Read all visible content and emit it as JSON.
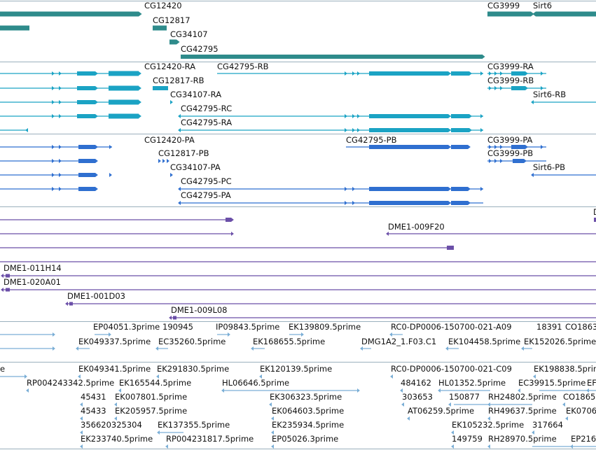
{
  "genes": {
    "labels": [
      "CG12420",
      "CG12817",
      "CG34107",
      "CG42795",
      "CG3999",
      "Sirt6"
    ],
    "color": "#2e8b8b"
  },
  "transcripts": {
    "labels": [
      "CG12420-RA",
      "CG42795-RB",
      "CG3999-RA",
      "CG12817-RB",
      "CG3999-RB",
      "CG34107-RA",
      "Sirt6-RB",
      "CG42795-RC",
      "CG42795-RA"
    ],
    "color": "#1ba3c4"
  },
  "proteins": {
    "labels": [
      "CG12420-PA",
      "CG42795-PB",
      "CG3999-PA",
      "CG12817-PB",
      "CG3999-PB",
      "CG34107-PA",
      "Sirt6-PB",
      "CG42795-PC",
      "CG42795-PA"
    ],
    "color": "#2f6fd0"
  },
  "clones": {
    "labels": [
      "DME1-009F20",
      "DME1-011H14",
      "DME1-020A01",
      "DME1-001D03",
      "DME1-009L08"
    ],
    "color": "#6b4fa8"
  },
  "ests_a": {
    "labels": [
      "EP04051.3prime",
      "190945",
      "IP09843.5prime",
      "EK139809.5prime",
      "RC0-DP0006-150700-021-A09",
      "18391",
      "CO1863",
      "EK049337.5prime",
      "EC35260.5prime",
      "EK168655.5prime",
      "DMG1A2_1.F03.C1",
      "EK104458.5prime",
      "EK152026.5prime"
    ],
    "color": "#7aaed6"
  },
  "ests_b": {
    "labels": [
      "e",
      "EK049341.5prime",
      "EK291830.5prime",
      "EK120139.5prime",
      "RC0-DP0006-150700-021-C09",
      "EK198838.5prime",
      "RP004243342.5prime",
      "EK165544.5prime",
      "HL06646.5prime",
      "484162",
      "HL01352.5prime",
      "EC39915.5prime",
      "EF",
      "45431",
      "EK007801.5prime",
      "EK306323.5prime",
      "303653",
      "150877",
      "RH24802.5prime",
      "CO1865",
      "45433",
      "EK205957.5prime",
      "EK064603.5prime",
      "AT06259.5prime",
      "RH49637.5prime",
      "EK0706",
      "356620325304",
      "EK137355.5prime",
      "EK235934.5prime",
      "EK105232.5prime",
      "317664",
      "EK233740.5prime",
      "RP004231817.5prime",
      "EP05026.3prime",
      "149759",
      "RH28970.5prime",
      "EP216"
    ],
    "color": "#7aaed6"
  },
  "partial_label": "D"
}
